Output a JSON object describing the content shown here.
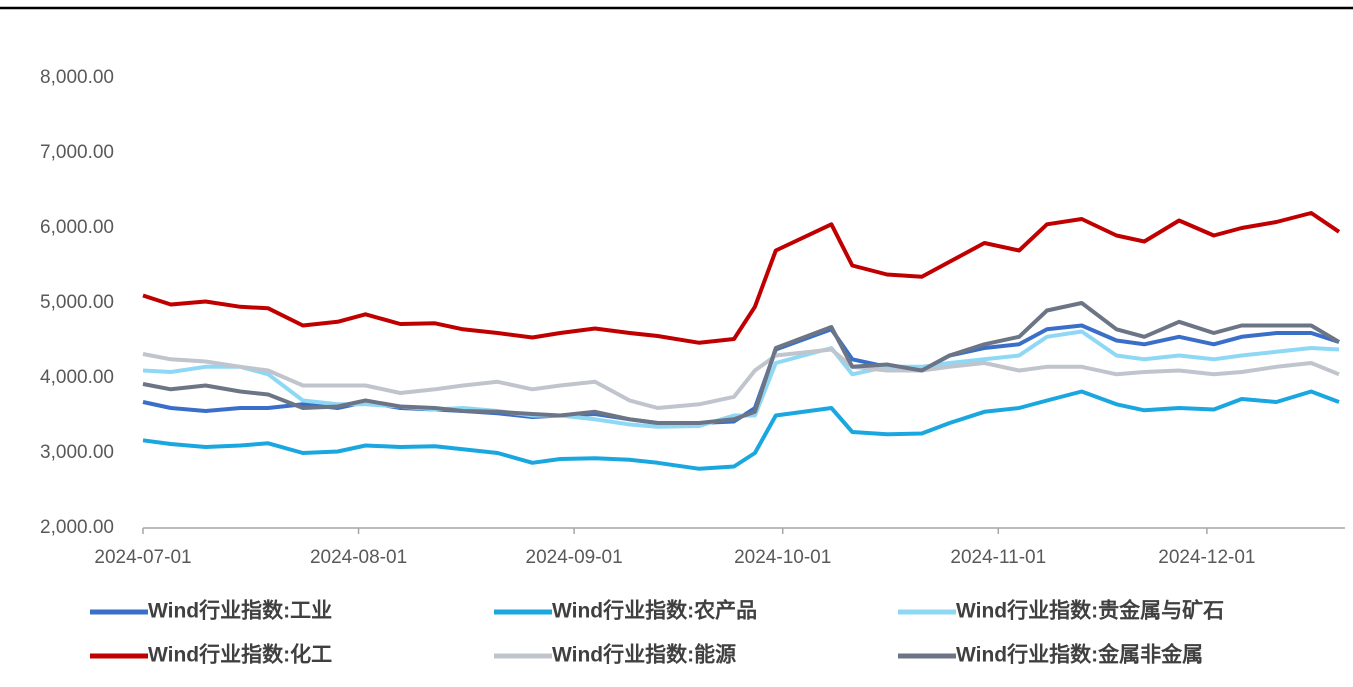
{
  "chart_data": {
    "type": "line",
    "x": [
      "2024-07-01",
      "2024-07-05",
      "2024-07-10",
      "2024-07-15",
      "2024-07-19",
      "2024-07-24",
      "2024-07-29",
      "2024-08-02",
      "2024-08-07",
      "2024-08-12",
      "2024-08-16",
      "2024-08-21",
      "2024-08-26",
      "2024-08-30",
      "2024-09-04",
      "2024-09-09",
      "2024-09-13",
      "2024-09-19",
      "2024-09-24",
      "2024-09-27",
      "2024-09-30",
      "2024-10-08",
      "2024-10-11",
      "2024-10-16",
      "2024-10-21",
      "2024-10-25",
      "2024-10-30",
      "2024-11-04",
      "2024-11-08",
      "2024-11-13",
      "2024-11-18",
      "2024-11-22",
      "2024-11-27",
      "2024-12-02",
      "2024-12-06",
      "2024-12-11",
      "2024-12-16",
      "2024-12-20"
    ],
    "series": [
      {
        "name": "Wind行业指数:工业",
        "color": "#3a6fc9",
        "values": [
          3680,
          3600,
          3560,
          3600,
          3600,
          3650,
          3600,
          3680,
          3600,
          3580,
          3560,
          3530,
          3480,
          3500,
          3520,
          3450,
          3400,
          3400,
          3420,
          3600,
          4380,
          4650,
          4250,
          4150,
          4100,
          4300,
          4400,
          4450,
          4650,
          4700,
          4500,
          4450,
          4550,
          4450,
          4550,
          4600,
          4600,
          4480
        ]
      },
      {
        "name": "Wind行业指数:农产品",
        "color": "#1aa7e0",
        "values": [
          3170,
          3120,
          3080,
          3100,
          3130,
          3000,
          3020,
          3100,
          3080,
          3090,
          3050,
          3000,
          2870,
          2920,
          2930,
          2910,
          2870,
          2790,
          2820,
          3000,
          3500,
          3600,
          3280,
          3250,
          3260,
          3400,
          3550,
          3600,
          3700,
          3820,
          3650,
          3570,
          3600,
          3580,
          3720,
          3680,
          3820,
          3680
        ]
      },
      {
        "name": "Wind行业指数:贵金属与矿石",
        "color": "#8fd8f5",
        "values": [
          4100,
          4080,
          4150,
          4150,
          4050,
          3700,
          3650,
          3650,
          3620,
          3580,
          3600,
          3560,
          3500,
          3500,
          3450,
          3380,
          3350,
          3360,
          3500,
          3500,
          4200,
          4400,
          4050,
          4150,
          4150,
          4200,
          4250,
          4300,
          4550,
          4620,
          4300,
          4250,
          4300,
          4250,
          4300,
          4350,
          4400,
          4380
        ]
      },
      {
        "name": "Wind行业指数:化工",
        "color": "#c00000",
        "values": [
          5100,
          4980,
          5020,
          4950,
          4930,
          4700,
          4750,
          4850,
          4720,
          4730,
          4650,
          4600,
          4540,
          4600,
          4660,
          4600,
          4560,
          4470,
          4520,
          4950,
          5700,
          6050,
          5500,
          5380,
          5350,
          5550,
          5800,
          5700,
          6050,
          6120,
          5900,
          5820,
          6100,
          5900,
          6000,
          6080,
          6200,
          5950
        ]
      },
      {
        "name": "Wind行业指数:能源",
        "color": "#c0c4cc",
        "values": [
          4320,
          4250,
          4220,
          4150,
          4100,
          3900,
          3900,
          3900,
          3800,
          3850,
          3900,
          3950,
          3850,
          3900,
          3950,
          3700,
          3600,
          3650,
          3750,
          4100,
          4300,
          4380,
          4150,
          4100,
          4100,
          4150,
          4200,
          4100,
          4150,
          4150,
          4050,
          4080,
          4100,
          4050,
          4080,
          4150,
          4200,
          4050
        ]
      },
      {
        "name": "Wind行业指数:金属非金属",
        "color": "#6b7585",
        "values": [
          3920,
          3850,
          3900,
          3820,
          3780,
          3600,
          3620,
          3700,
          3620,
          3600,
          3560,
          3550,
          3520,
          3500,
          3550,
          3450,
          3400,
          3400,
          3450,
          3550,
          4400,
          4680,
          4150,
          4180,
          4100,
          4300,
          4450,
          4550,
          4900,
          5000,
          4650,
          4550,
          4750,
          4600,
          4700,
          4700,
          4700,
          4480
        ]
      }
    ],
    "xlim": [
      "2024-07-01",
      "2024-12-20"
    ],
    "xticks": [
      "2024-07-01",
      "2024-08-01",
      "2024-09-01",
      "2024-10-01",
      "2024-11-01",
      "2024-12-01"
    ],
    "ylim": [
      2000,
      8000
    ],
    "yticks": [
      {
        "value": 2000,
        "label": "2,000.00"
      },
      {
        "value": 3000,
        "label": "3,000.00"
      },
      {
        "value": 4000,
        "label": "4,000.00"
      },
      {
        "value": 5000,
        "label": "5,000.00"
      },
      {
        "value": 6000,
        "label": "6,000.00"
      },
      {
        "value": 7000,
        "label": "7,000.00"
      },
      {
        "value": 8000,
        "label": "8,000.00"
      }
    ],
    "grid": false,
    "legend": "bottom"
  }
}
